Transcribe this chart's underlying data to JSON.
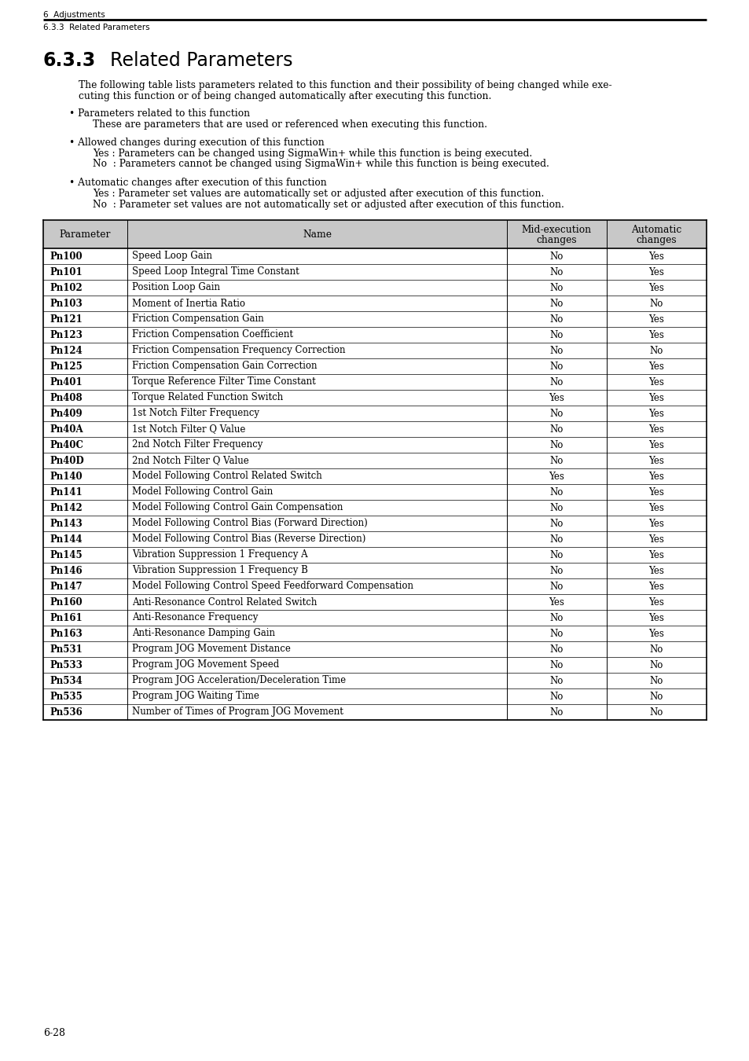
{
  "page_header_top": "6  Adjustments",
  "page_header_bottom": "6.3.3  Related Parameters",
  "section_number": "6.3.3",
  "section_title": "Related Parameters",
  "intro_line1": "The following table lists parameters related to this function and their possibility of being changed while exe-",
  "intro_line2": "cuting this function or of being changed automatically after executing this function.",
  "bullet1_title": "• Parameters related to this function",
  "bullet1_body": "These are parameters that are used or referenced when executing this function.",
  "bullet2_title": "• Allowed changes during execution of this function",
  "bullet2_yes": "Yes : Parameters can be changed using SigmaWin+ while this function is being executed.",
  "bullet2_no": "No  : Parameters cannot be changed using SigmaWin+ while this function is being executed.",
  "bullet3_title": "• Automatic changes after execution of this function",
  "bullet3_yes": "Yes : Parameter set values are automatically set or adjusted after execution of this function.",
  "bullet3_no": "No  : Parameter set values are not automatically set or adjusted after execution of this function.",
  "table_rows": [
    [
      "Pn100",
      "Speed Loop Gain",
      "No",
      "Yes"
    ],
    [
      "Pn101",
      "Speed Loop Integral Time Constant",
      "No",
      "Yes"
    ],
    [
      "Pn102",
      "Position Loop Gain",
      "No",
      "Yes"
    ],
    [
      "Pn103",
      "Moment of Inertia Ratio",
      "No",
      "No"
    ],
    [
      "Pn121",
      "Friction Compensation Gain",
      "No",
      "Yes"
    ],
    [
      "Pn123",
      "Friction Compensation Coefficient",
      "No",
      "Yes"
    ],
    [
      "Pn124",
      "Friction Compensation Frequency Correction",
      "No",
      "No"
    ],
    [
      "Pn125",
      "Friction Compensation Gain Correction",
      "No",
      "Yes"
    ],
    [
      "Pn401",
      "Torque Reference Filter Time Constant",
      "No",
      "Yes"
    ],
    [
      "Pn408",
      "Torque Related Function Switch",
      "Yes",
      "Yes"
    ],
    [
      "Pn409",
      "1st Notch Filter Frequency",
      "No",
      "Yes"
    ],
    [
      "Pn40A",
      "1st Notch Filter Q Value",
      "No",
      "Yes"
    ],
    [
      "Pn40C",
      "2nd Notch Filter Frequency",
      "No",
      "Yes"
    ],
    [
      "Pn40D",
      "2nd Notch Filter Q Value",
      "No",
      "Yes"
    ],
    [
      "Pn140",
      "Model Following Control Related Switch",
      "Yes",
      "Yes"
    ],
    [
      "Pn141",
      "Model Following Control Gain",
      "No",
      "Yes"
    ],
    [
      "Pn142",
      "Model Following Control Gain Compensation",
      "No",
      "Yes"
    ],
    [
      "Pn143",
      "Model Following Control Bias (Forward Direction)",
      "No",
      "Yes"
    ],
    [
      "Pn144",
      "Model Following Control Bias (Reverse Direction)",
      "No",
      "Yes"
    ],
    [
      "Pn145",
      "Vibration Suppression 1 Frequency A",
      "No",
      "Yes"
    ],
    [
      "Pn146",
      "Vibration Suppression 1 Frequency B",
      "No",
      "Yes"
    ],
    [
      "Pn147",
      "Model Following Control Speed Feedforward Compensation",
      "No",
      "Yes"
    ],
    [
      "Pn160",
      "Anti-Resonance Control Related Switch",
      "Yes",
      "Yes"
    ],
    [
      "Pn161",
      "Anti-Resonance Frequency",
      "No",
      "Yes"
    ],
    [
      "Pn163",
      "Anti-Resonance Damping Gain",
      "No",
      "Yes"
    ],
    [
      "Pn531",
      "Program JOG Movement Distance",
      "No",
      "No"
    ],
    [
      "Pn533",
      "Program JOG Movement Speed",
      "No",
      "No"
    ],
    [
      "Pn534",
      "Program JOG Acceleration/Deceleration Time",
      "No",
      "No"
    ],
    [
      "Pn535",
      "Program JOG Waiting Time",
      "No",
      "No"
    ],
    [
      "Pn536",
      "Number of Times of Program JOG Movement",
      "No",
      "No"
    ]
  ],
  "page_number": "6-28",
  "bg_color": "#ffffff",
  "header_bg": "#c8c8c8",
  "border_color": "#000000"
}
